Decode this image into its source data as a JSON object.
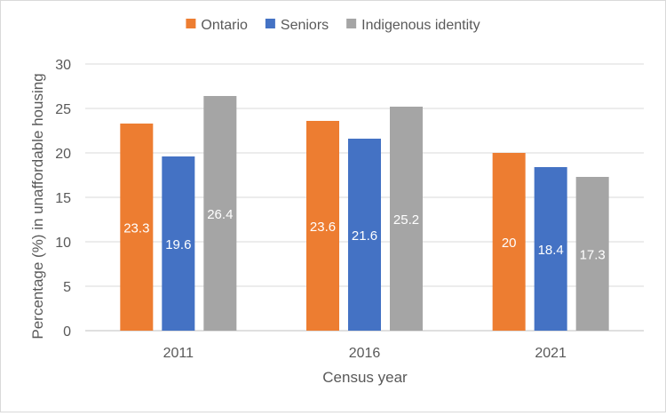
{
  "chart_data": {
    "type": "bar",
    "categories": [
      "2011",
      "2016",
      "2021"
    ],
    "series": [
      {
        "name": "Ontario",
        "values": [
          23.3,
          23.6,
          20
        ],
        "color": "#ED7D31"
      },
      {
        "name": "Seniors",
        "values": [
          19.6,
          21.6,
          18.4
        ],
        "color": "#4472C4"
      },
      {
        "name": "Indigenous identity",
        "values": [
          26.4,
          25.2,
          17.3
        ],
        "color": "#A5A5A5"
      }
    ],
    "title": "",
    "xlabel": "Census year",
    "ylabel": "Percentage (%) in unaffordable housing",
    "ylim": [
      0,
      30
    ],
    "yticks": [
      0,
      5,
      10,
      15,
      20,
      25,
      30
    ],
    "grid": true,
    "legend_position": "top",
    "data_label_color": "#ffffff",
    "axis_text_color": "#595959",
    "grid_color": "#d9d9d9"
  }
}
